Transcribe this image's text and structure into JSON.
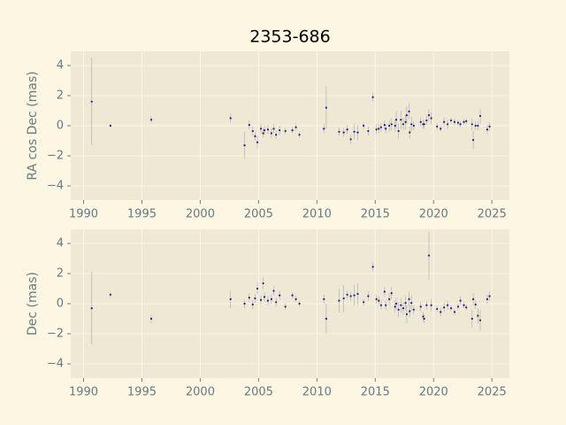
{
  "title": "2353-686",
  "chart_data": [
    {
      "type": "scatter",
      "ylabel": "RA cos Dec (mas)",
      "color": "#1f1f8f",
      "error_color": "#a8a8a8",
      "grid": true,
      "xlim": [
        1988.9,
        2026.5
      ],
      "xticks": [
        1990,
        1995,
        2000,
        2005,
        2010,
        2015,
        2020,
        2025
      ],
      "ylim": [
        -4.94,
        4.94
      ],
      "yticks": [
        {
          "value": -4,
          "label": "−4"
        },
        {
          "value": -2,
          "label": "−2"
        },
        0,
        2,
        4
      ],
      "x": [
        1990.7,
        1992.3,
        1995.8,
        2002.6,
        2003.8,
        2004.2,
        2004.5,
        2004.7,
        2004.9,
        2005.2,
        2005.4,
        2005.5,
        2005.8,
        2006.1,
        2006.3,
        2006.5,
        2006.8,
        2007.3,
        2007.9,
        2008.2,
        2008.5,
        2010.6,
        2010.8,
        2011.9,
        2012.3,
        2012.6,
        2012.9,
        2013.2,
        2013.5,
        2014.0,
        2014.4,
        2014.8,
        2015.1,
        2015.3,
        2015.5,
        2015.8,
        2015.9,
        2016.2,
        2016.4,
        2016.7,
        2016.8,
        2017.0,
        2017.2,
        2017.4,
        2017.6,
        2017.7,
        2017.9,
        2017.95,
        2018.1,
        2018.3,
        2018.9,
        2019.1,
        2019.2,
        2019.4,
        2019.6,
        2019.8,
        2020.3,
        2020.6,
        2020.9,
        2021.2,
        2021.5,
        2021.8,
        2022.1,
        2022.3,
        2022.6,
        2022.8,
        2023.3,
        2023.4,
        2023.6,
        2023.8,
        2024.0,
        2024.6,
        2024.8
      ],
      "values": [
        1.6,
        0.0,
        0.4,
        0.5,
        -1.3,
        0.05,
        -0.35,
        -0.7,
        -1.1,
        -0.2,
        -0.5,
        -0.3,
        -0.25,
        -0.5,
        -0.2,
        -0.6,
        -0.3,
        -0.35,
        -0.3,
        -0.1,
        -0.6,
        -0.2,
        1.2,
        -0.4,
        -0.45,
        -0.25,
        -0.9,
        -0.4,
        -0.45,
        0.0,
        -0.35,
        1.9,
        -0.25,
        -0.2,
        -0.1,
        0.05,
        -0.2,
        0.0,
        0.1,
        0.0,
        0.4,
        -0.35,
        0.4,
        0.1,
        0.25,
        0.7,
        0.95,
        -0.45,
        0.1,
        0.0,
        0.25,
        0.1,
        0.1,
        0.35,
        0.7,
        0.5,
        -0.05,
        -0.2,
        0.25,
        0.1,
        0.35,
        0.25,
        0.2,
        0.1,
        0.25,
        0.3,
        0.1,
        -0.95,
        0.0,
        0.0,
        0.65,
        -0.25,
        -0.05
      ],
      "errors": [
        2.9,
        0.1,
        0.2,
        0.3,
        0.9,
        0.3,
        0.3,
        0.3,
        0.4,
        0.3,
        0.3,
        0.3,
        0.3,
        0.3,
        0.3,
        0.3,
        0.3,
        0.2,
        0.2,
        0.2,
        0.2,
        0.3,
        1.4,
        0.3,
        0.3,
        0.3,
        0.3,
        0.5,
        0.5,
        0.2,
        0.3,
        0.3,
        0.3,
        0.3,
        0.3,
        0.3,
        0.3,
        0.4,
        0.4,
        0.4,
        0.6,
        0.5,
        0.6,
        0.4,
        0.5,
        0.6,
        0.5,
        0.4,
        0.5,
        0.3,
        0.3,
        0.3,
        0.3,
        0.3,
        0.4,
        0.4,
        0.2,
        0.2,
        0.3,
        0.3,
        0.2,
        0.2,
        0.2,
        0.2,
        0.2,
        0.2,
        0.4,
        0.6,
        0.3,
        0.3,
        0.5,
        0.3,
        0.3
      ]
    },
    {
      "type": "scatter",
      "ylabel": "Dec (mas)",
      "color": "#1f1f8f",
      "error_color": "#a8a8a8",
      "grid": true,
      "xlim": [
        1988.9,
        2026.5
      ],
      "xticks": [
        1990,
        1995,
        2000,
        2005,
        2010,
        2015,
        2020,
        2025
      ],
      "ylim": [
        -4.94,
        4.94
      ],
      "yticks": [
        {
          "value": -4,
          "label": "−4"
        },
        {
          "value": -2,
          "label": "−2"
        },
        0,
        2,
        4
      ],
      "x": [
        1990.7,
        1992.3,
        1995.8,
        2002.6,
        2003.8,
        2004.2,
        2004.5,
        2004.7,
        2004.9,
        2005.2,
        2005.4,
        2005.5,
        2005.8,
        2006.1,
        2006.3,
        2006.5,
        2006.8,
        2007.3,
        2007.9,
        2008.2,
        2008.5,
        2010.6,
        2010.8,
        2011.9,
        2012.3,
        2012.6,
        2012.9,
        2013.2,
        2013.5,
        2014.0,
        2014.4,
        2014.8,
        2015.1,
        2015.3,
        2015.5,
        2015.8,
        2015.9,
        2016.2,
        2016.4,
        2016.7,
        2016.8,
        2017.0,
        2017.2,
        2017.4,
        2017.6,
        2017.7,
        2017.9,
        2017.95,
        2018.1,
        2018.3,
        2018.9,
        2019.1,
        2019.2,
        2019.4,
        2019.6,
        2019.8,
        2020.3,
        2020.6,
        2020.9,
        2021.2,
        2021.5,
        2021.8,
        2022.1,
        2022.3,
        2022.6,
        2022.8,
        2023.3,
        2023.4,
        2023.6,
        2023.8,
        2024.0,
        2024.6,
        2024.8
      ],
      "values": [
        -0.3,
        0.6,
        -1.0,
        0.3,
        0.0,
        0.4,
        -0.05,
        0.35,
        1.0,
        0.25,
        1.35,
        0.45,
        0.2,
        0.3,
        0.85,
        0.1,
        0.55,
        -0.2,
        0.55,
        0.3,
        0.0,
        0.3,
        -1.0,
        0.2,
        0.35,
        0.6,
        0.5,
        0.55,
        0.65,
        0.1,
        0.5,
        2.45,
        0.3,
        0.2,
        -0.1,
        0.8,
        -0.1,
        0.3,
        0.7,
        -0.2,
        0.0,
        -0.4,
        -0.1,
        -0.3,
        0.05,
        -0.7,
        0.3,
        -0.5,
        0.05,
        -0.4,
        -0.2,
        -0.85,
        -1.0,
        -0.1,
        3.2,
        -0.1,
        -0.35,
        -0.55,
        -0.25,
        -0.1,
        -0.3,
        -0.55,
        -0.2,
        0.2,
        -0.1,
        -0.25,
        -1.0,
        0.3,
        -0.05,
        -0.8,
        -1.1,
        0.3,
        0.5
      ],
      "errors": [
        2.4,
        0.2,
        0.3,
        0.6,
        0.3,
        0.3,
        0.3,
        0.3,
        0.4,
        0.3,
        0.4,
        0.3,
        0.3,
        0.3,
        0.3,
        0.3,
        0.3,
        0.2,
        0.2,
        0.2,
        0.2,
        0.3,
        1.0,
        0.8,
        0.9,
        0.3,
        0.3,
        0.7,
        0.7,
        0.2,
        0.3,
        0.3,
        0.3,
        0.3,
        0.3,
        0.3,
        0.3,
        0.4,
        0.4,
        0.4,
        0.4,
        0.5,
        0.5,
        0.4,
        0.5,
        0.6,
        0.5,
        0.4,
        0.5,
        0.3,
        0.3,
        0.3,
        0.3,
        0.3,
        1.6,
        0.4,
        0.2,
        0.3,
        0.3,
        0.3,
        0.2,
        0.2,
        0.2,
        0.3,
        0.2,
        0.2,
        0.6,
        0.4,
        0.3,
        0.5,
        0.7,
        0.3,
        0.3
      ]
    }
  ]
}
